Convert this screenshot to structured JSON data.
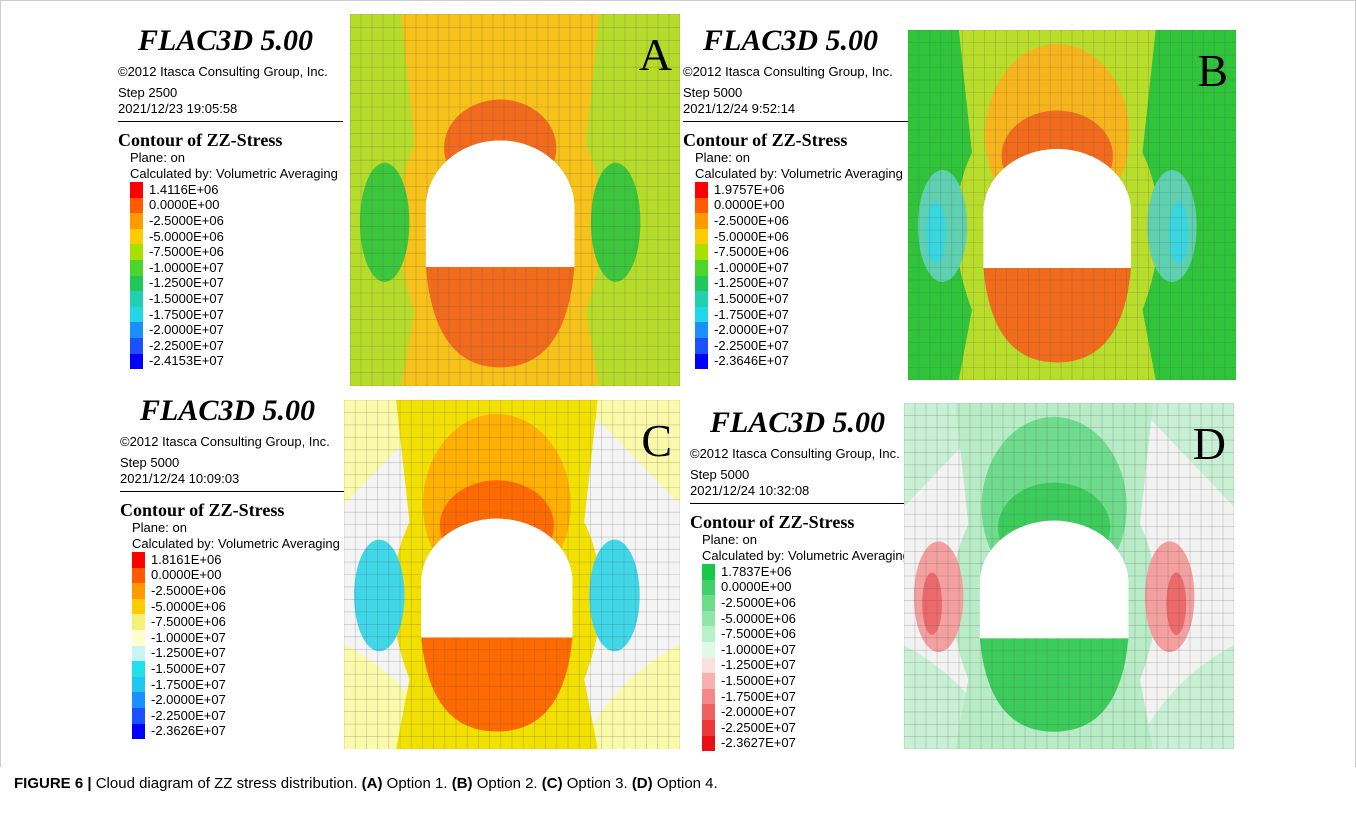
{
  "panels": [
    {
      "label": "A",
      "software": "FLAC3D 5.00",
      "copyright": "©2012 Itasca Consulting Group, Inc.",
      "step": "Step 2500",
      "timestamp": "2021/12/23 19:05:58",
      "contour_title": "Contour of ZZ-Stress",
      "plane": "Plane: on",
      "calculated_by": "Calculated by: Volumetric Averaging",
      "legend": [
        {
          "label": "1.4116E+06",
          "color": "#ff0000"
        },
        {
          "label": "0.0000E+00",
          "color": "#ff5a00"
        },
        {
          "label": "-2.5000E+06",
          "color": "#ff9900"
        },
        {
          "label": "-5.0000E+06",
          "color": "#ffcc00"
        },
        {
          "label": "-7.5000E+06",
          "color": "#a8e000"
        },
        {
          "label": "-1.0000E+07",
          "color": "#4cd62c"
        },
        {
          "label": "-1.2500E+07",
          "color": "#22c75a"
        },
        {
          "label": "-1.5000E+07",
          "color": "#20d0b0"
        },
        {
          "label": "-1.7500E+07",
          "color": "#20d8e8"
        },
        {
          "label": "-2.0000E+07",
          "color": "#1a90ff"
        },
        {
          "label": "-2.2500E+07",
          "color": "#1a50ff"
        },
        {
          "label": "-2.4153E+07",
          "color": "#0000ff"
        }
      ]
    },
    {
      "label": "B",
      "software": "FLAC3D 5.00",
      "copyright": "©2012 Itasca Consulting Group, Inc.",
      "step": "Step 5000",
      "timestamp": "2021/12/24 9:52:14",
      "contour_title": "Contour of ZZ-Stress",
      "plane": "Plane: on",
      "calculated_by": "Calculated by: Volumetric Averaging",
      "legend": [
        {
          "label": "1.9757E+06",
          "color": "#ff0000"
        },
        {
          "label": "0.0000E+00",
          "color": "#ff5a00"
        },
        {
          "label": "-2.5000E+06",
          "color": "#ff9900"
        },
        {
          "label": "-5.0000E+06",
          "color": "#ffcc00"
        },
        {
          "label": "-7.5000E+06",
          "color": "#a8e000"
        },
        {
          "label": "-1.0000E+07",
          "color": "#4cd62c"
        },
        {
          "label": "-1.2500E+07",
          "color": "#22c75a"
        },
        {
          "label": "-1.5000E+07",
          "color": "#20d0b0"
        },
        {
          "label": "-1.7500E+07",
          "color": "#20d8e8"
        },
        {
          "label": "-2.0000E+07",
          "color": "#1a90ff"
        },
        {
          "label": "-2.2500E+07",
          "color": "#1a50ff"
        },
        {
          "label": "-2.3646E+07",
          "color": "#0000ff"
        }
      ]
    },
    {
      "label": "C",
      "software": "FLAC3D 5.00",
      "copyright": "©2012 Itasca Consulting Group, Inc.",
      "step": "Step 5000",
      "timestamp": "2021/12/24 10:09:03",
      "contour_title": "Contour of ZZ-Stress",
      "plane": "Plane: on",
      "calculated_by": "Calculated by: Volumetric Averaging",
      "legend": [
        {
          "label": "1.8161E+06",
          "color": "#ff0000"
        },
        {
          "label": "0.0000E+00",
          "color": "#ff5a00"
        },
        {
          "label": "-2.5000E+06",
          "color": "#ff9900"
        },
        {
          "label": "-5.0000E+06",
          "color": "#ffcc00"
        },
        {
          "label": "-7.5000E+06",
          "color": "#f5f07a"
        },
        {
          "label": "-1.0000E+07",
          "color": "#ffffd0"
        },
        {
          "label": "-1.2500E+07",
          "color": "#c8f4f4"
        },
        {
          "label": "-1.5000E+07",
          "color": "#20e0e8"
        },
        {
          "label": "-1.7500E+07",
          "color": "#20c8f0"
        },
        {
          "label": "-2.0000E+07",
          "color": "#1a90ff"
        },
        {
          "label": "-2.2500E+07",
          "color": "#1a50ff"
        },
        {
          "label": "-2.3626E+07",
          "color": "#0000ff"
        }
      ]
    },
    {
      "label": "D",
      "software": "FLAC3D 5.00",
      "copyright": "©2012 Itasca Consulting Group, Inc.",
      "step": "Step 5000",
      "timestamp": "2021/12/24 10:32:08",
      "contour_title": "Contour of ZZ-Stress",
      "plane": "Plane: on",
      "calculated_by": "Calculated by: Volumetric Averaging",
      "legend": [
        {
          "label": "1.7837E+06",
          "color": "#19c84a"
        },
        {
          "label": "0.0000E+00",
          "color": "#3dd26a"
        },
        {
          "label": "-2.5000E+06",
          "color": "#6adc8a"
        },
        {
          "label": "-5.0000E+06",
          "color": "#90e6a8"
        },
        {
          "label": "-7.5000E+06",
          "color": "#b8f0c8"
        },
        {
          "label": "-1.0000E+07",
          "color": "#e0f8e8"
        },
        {
          "label": "-1.2500E+07",
          "color": "#fce0e0"
        },
        {
          "label": "-1.5000E+07",
          "color": "#f8b0b0"
        },
        {
          "label": "-1.7500E+07",
          "color": "#f48888"
        },
        {
          "label": "-2.0000E+07",
          "color": "#f06060"
        },
        {
          "label": "-2.2500E+07",
          "color": "#ec3838"
        },
        {
          "label": "-2.3627E+07",
          "color": "#e81010"
        }
      ]
    }
  ],
  "caption": [
    {
      "text": "FIGURE 6 |",
      "bold": true
    },
    {
      "text": "Cloud diagram of ZZ stress distribution.",
      "bold": false
    },
    {
      "text": "(A)",
      "bold": true
    },
    {
      "text": "Option 1.",
      "bold": false
    },
    {
      "text": "(B)",
      "bold": true
    },
    {
      "text": "Option 2.",
      "bold": false
    },
    {
      "text": "(C)",
      "bold": true
    },
    {
      "text": "Option 3.",
      "bold": false
    },
    {
      "text": "(D)",
      "bold": true
    },
    {
      "text": "Option 4.",
      "bold": false
    }
  ]
}
